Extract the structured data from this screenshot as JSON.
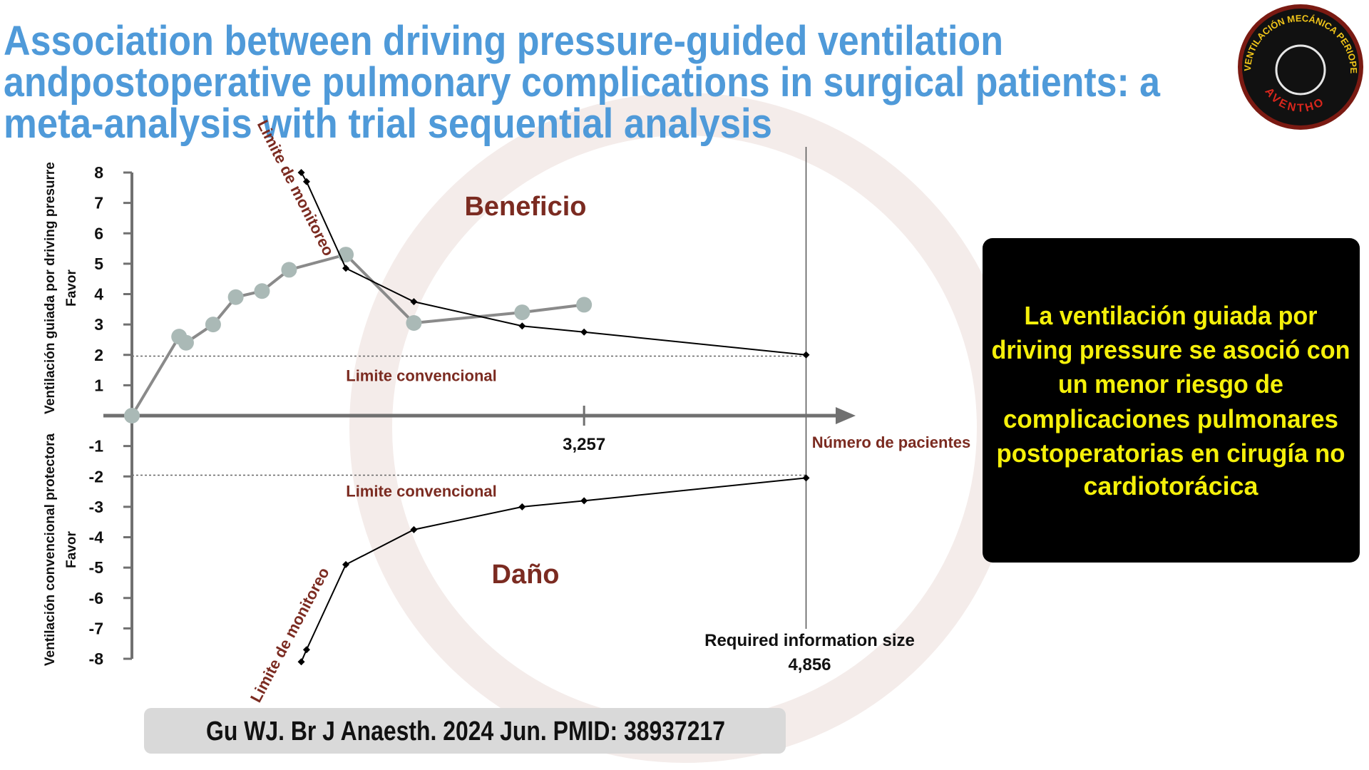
{
  "header": {
    "title_lines": [
      "Association between driving pressure-guided ventilation",
      "andpostoperative pulmonary complications in surgical patients: a",
      "meta-analysis with trial sequential analysis"
    ]
  },
  "logo": {
    "ring_text": "VENTILACIÓN MECÁNICA PERIOPERATORIA",
    "name": "AVENTHO"
  },
  "chart_data": {
    "type": "line",
    "xlabel": "Número de pacientes",
    "ylabels": [
      {
        "lines": [
          "Ventilación guiada por driving presurre",
          "Favor"
        ]
      },
      {
        "lines": [
          "Ventilación convencional protectora",
          "Favor"
        ]
      }
    ],
    "region_labels": [
      "Beneficio",
      "Daño"
    ],
    "xlim": [
      0,
      5213
    ],
    "ylim": [
      -8,
      8
    ],
    "xticks": [
      {
        "value": 3257,
        "label": "3,257"
      }
    ],
    "yticks": [
      -8,
      -7,
      -6,
      -5,
      -4,
      -3,
      -2,
      -1,
      1,
      2,
      3,
      4,
      5,
      6,
      7,
      8
    ],
    "series": [
      {
        "color": "#8a8a8a",
        "marker": "circle",
        "marker_color": "#aab9b6",
        "x": [
          0,
          340,
          390,
          585,
          748,
          937,
          1132,
          1541,
          2031,
          2811,
          3257
        ],
        "values": [
          0,
          2.6,
          2.4,
          3.0,
          3.9,
          4.1,
          4.8,
          5.3,
          3.05,
          3.4,
          3.65
        ]
      },
      {
        "name": "Limite de monitoreo",
        "color": "#000000",
        "marker": "diamond",
        "x": [
          1220,
          1258,
          1541,
          2031,
          2811,
          3257,
          4856
        ],
        "values": [
          8.0,
          7.7,
          4.85,
          3.75,
          2.95,
          2.75,
          2.0
        ]
      },
      {
        "name": "Limite de monitoreo",
        "color": "#000000",
        "marker": "diamond",
        "x": [
          1220,
          1258,
          1541,
          2031,
          2811,
          3257,
          4856
        ],
        "values": [
          -8.1,
          -7.7,
          -4.9,
          -3.75,
          -3.0,
          -2.8,
          -2.05
        ]
      }
    ],
    "limits": [
      {
        "label": "Limite convencional",
        "value": 1.96
      },
      {
        "label": "Limite convencional",
        "value": -1.96
      }
    ],
    "annotations": [
      {
        "text": "Required information size",
        "x": 4856,
        "x_label": "4,856"
      }
    ]
  },
  "callout": {
    "lines": [
      "La ventilación guiada por",
      "driving pressure se asoció con",
      "un menor riesgo de",
      "complicaciones pulmonares",
      "postoperatorias en cirugía no",
      "cardiotorácica"
    ]
  },
  "citation": "Gu WJ. Br J Anaesth. 2024 Jun. PMID: 38937217"
}
